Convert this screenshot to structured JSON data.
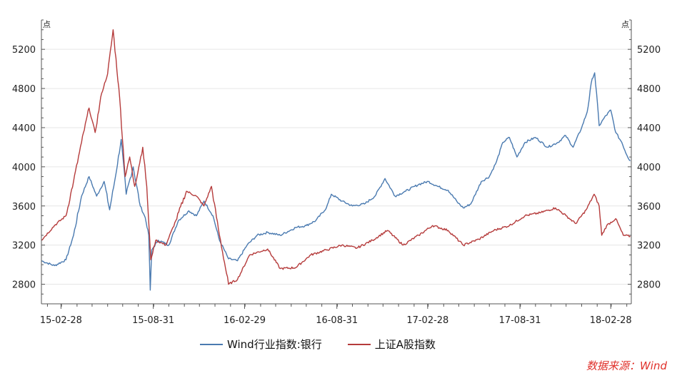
{
  "chart_data": {
    "type": "line",
    "unit_left": "点",
    "unit_right": "点",
    "ylim": [
      2600,
      5500
    ],
    "yticks": [
      2800,
      3200,
      3600,
      4000,
      4400,
      4800,
      5200
    ],
    "xticks": [
      "15-02-28",
      "15-08-31",
      "16-02-29",
      "16-08-31",
      "17-02-28",
      "17-08-31",
      "18-02-28"
    ],
    "xlim": [
      "2015-01-20",
      "2018-04-10"
    ],
    "grid": true,
    "legend_position": "bottom",
    "series": [
      {
        "name": "Wind行业指数:银行",
        "color": "#4a7ab0",
        "points": [
          [
            "2015-01-20",
            3040
          ],
          [
            "2015-02-15",
            2990
          ],
          [
            "2015-03-10",
            3050
          ],
          [
            "2015-03-25",
            3300
          ],
          [
            "2015-04-10",
            3700
          ],
          [
            "2015-04-25",
            3900
          ],
          [
            "2015-05-10",
            3700
          ],
          [
            "2015-05-25",
            3850
          ],
          [
            "2015-06-05",
            3560
          ],
          [
            "2015-06-15",
            3850
          ],
          [
            "2015-06-28",
            4280
          ],
          [
            "2015-07-08",
            3720
          ],
          [
            "2015-07-22",
            4000
          ],
          [
            "2015-08-05",
            3600
          ],
          [
            "2015-08-15",
            3480
          ],
          [
            "2015-08-22",
            3300
          ],
          [
            "2015-08-25",
            2740
          ],
          [
            "2015-08-28",
            3150
          ],
          [
            "2015-09-10",
            3250
          ],
          [
            "2015-10-01",
            3200
          ],
          [
            "2015-10-20",
            3450
          ],
          [
            "2015-11-10",
            3550
          ],
          [
            "2015-11-25",
            3500
          ],
          [
            "2015-12-10",
            3650
          ],
          [
            "2015-12-28",
            3500
          ],
          [
            "2016-01-10",
            3250
          ],
          [
            "2016-01-28",
            3060
          ],
          [
            "2016-02-15",
            3040
          ],
          [
            "2016-03-05",
            3200
          ],
          [
            "2016-03-25",
            3300
          ],
          [
            "2016-04-15",
            3330
          ],
          [
            "2016-05-10",
            3300
          ],
          [
            "2016-06-10",
            3380
          ],
          [
            "2016-07-01",
            3400
          ],
          [
            "2016-07-20",
            3450
          ],
          [
            "2016-08-10",
            3580
          ],
          [
            "2016-08-20",
            3720
          ],
          [
            "2016-09-10",
            3650
          ],
          [
            "2016-10-01",
            3600
          ],
          [
            "2016-10-25",
            3620
          ],
          [
            "2016-11-15",
            3700
          ],
          [
            "2016-12-05",
            3880
          ],
          [
            "2016-12-25",
            3700
          ],
          [
            "2017-01-15",
            3750
          ],
          [
            "2017-02-10",
            3820
          ],
          [
            "2017-03-01",
            3850
          ],
          [
            "2017-03-20",
            3800
          ],
          [
            "2017-04-10",
            3760
          ],
          [
            "2017-04-28",
            3640
          ],
          [
            "2017-05-10",
            3580
          ],
          [
            "2017-05-25",
            3620
          ],
          [
            "2017-06-15",
            3850
          ],
          [
            "2017-07-01",
            3900
          ],
          [
            "2017-07-15",
            4050
          ],
          [
            "2017-07-28",
            4250
          ],
          [
            "2017-08-10",
            4300
          ],
          [
            "2017-08-25",
            4100
          ],
          [
            "2017-09-10",
            4250
          ],
          [
            "2017-10-01",
            4300
          ],
          [
            "2017-10-25",
            4200
          ],
          [
            "2017-11-15",
            4250
          ],
          [
            "2017-11-30",
            4320
          ],
          [
            "2017-12-15",
            4200
          ],
          [
            "2018-01-01",
            4400
          ],
          [
            "2018-01-12",
            4560
          ],
          [
            "2018-01-22",
            4900
          ],
          [
            "2018-01-27",
            4960
          ],
          [
            "2018-02-05",
            4420
          ],
          [
            "2018-02-15",
            4500
          ],
          [
            "2018-02-28",
            4580
          ],
          [
            "2018-03-10",
            4350
          ],
          [
            "2018-03-22",
            4250
          ],
          [
            "2018-04-01",
            4120
          ],
          [
            "2018-04-08",
            4060
          ]
        ]
      },
      {
        "name": "上证A股指数",
        "color": "#b53b3b",
        "points": [
          [
            "2015-01-20",
            3250
          ],
          [
            "2015-02-15",
            3400
          ],
          [
            "2015-03-10",
            3500
          ],
          [
            "2015-03-25",
            3850
          ],
          [
            "2015-04-10",
            4250
          ],
          [
            "2015-04-25",
            4600
          ],
          [
            "2015-05-07",
            4350
          ],
          [
            "2015-05-20",
            4750
          ],
          [
            "2015-06-01",
            4950
          ],
          [
            "2015-06-12",
            5400
          ],
          [
            "2015-06-25",
            4700
          ],
          [
            "2015-07-06",
            3900
          ],
          [
            "2015-07-15",
            4100
          ],
          [
            "2015-07-25",
            3800
          ],
          [
            "2015-08-10",
            4200
          ],
          [
            "2015-08-18",
            3800
          ],
          [
            "2015-08-26",
            3050
          ],
          [
            "2015-09-05",
            3250
          ],
          [
            "2015-09-25",
            3200
          ],
          [
            "2015-10-15",
            3450
          ],
          [
            "2015-11-05",
            3750
          ],
          [
            "2015-11-25",
            3700
          ],
          [
            "2015-12-10",
            3600
          ],
          [
            "2015-12-25",
            3800
          ],
          [
            "2016-01-10",
            3300
          ],
          [
            "2016-01-28",
            2800
          ],
          [
            "2016-02-15",
            2850
          ],
          [
            "2016-03-10",
            3100
          ],
          [
            "2016-04-15",
            3160
          ],
          [
            "2016-05-10",
            2960
          ],
          [
            "2016-06-10",
            2970
          ],
          [
            "2016-07-10",
            3100
          ],
          [
            "2016-08-10",
            3150
          ],
          [
            "2016-09-10",
            3200
          ],
          [
            "2016-10-10",
            3170
          ],
          [
            "2016-11-10",
            3250
          ],
          [
            "2016-12-10",
            3350
          ],
          [
            "2017-01-10",
            3200
          ],
          [
            "2017-02-10",
            3300
          ],
          [
            "2017-03-10",
            3400
          ],
          [
            "2017-04-10",
            3350
          ],
          [
            "2017-05-10",
            3200
          ],
          [
            "2017-06-10",
            3260
          ],
          [
            "2017-07-10",
            3350
          ],
          [
            "2017-08-10",
            3400
          ],
          [
            "2017-09-10",
            3500
          ],
          [
            "2017-10-10",
            3530
          ],
          [
            "2017-11-10",
            3580
          ],
          [
            "2017-12-01",
            3500
          ],
          [
            "2017-12-20",
            3420
          ],
          [
            "2018-01-10",
            3560
          ],
          [
            "2018-01-26",
            3720
          ],
          [
            "2018-02-05",
            3600
          ],
          [
            "2018-02-10",
            3300
          ],
          [
            "2018-02-20",
            3400
          ],
          [
            "2018-03-10",
            3470
          ],
          [
            "2018-03-25",
            3300
          ],
          [
            "2018-04-08",
            3290
          ]
        ]
      }
    ]
  },
  "source": "数据来源：Wind"
}
